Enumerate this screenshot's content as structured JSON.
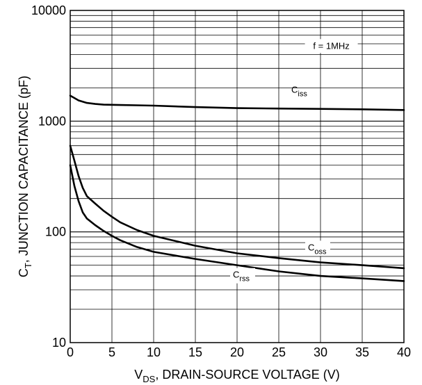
{
  "chart_data": {
    "type": "line",
    "xlabel": {
      "main": "V",
      "sub": "DS",
      "rest": ", DRAIN-SOURCE VOLTAGE (V)"
    },
    "ylabel": {
      "main": "C",
      "sub": "T",
      "rest": ", JUNCTION CAPACITANCE (pF)"
    },
    "xlim": [
      0,
      40
    ],
    "ylim": [
      10,
      10000
    ],
    "yscale": "log",
    "grid": true,
    "x_ticks": [
      "0",
      "5",
      "10",
      "15",
      "20",
      "25",
      "30",
      "35",
      "40"
    ],
    "y_ticks": [
      "10",
      "100",
      "1000",
      "10000"
    ],
    "annotation": "f = 1MHz",
    "series": [
      {
        "name": {
          "main": "C",
          "sub": "iss"
        },
        "x": [
          0,
          0.5,
          1,
          2,
          3,
          4,
          6,
          8,
          10,
          15,
          20,
          25,
          30,
          35,
          40
        ],
        "y": [
          1700,
          1620,
          1540,
          1460,
          1430,
          1410,
          1400,
          1390,
          1380,
          1340,
          1310,
          1300,
          1290,
          1280,
          1260
        ]
      },
      {
        "name": {
          "main": "C",
          "sub": "oss"
        },
        "x": [
          0,
          0.5,
          1,
          1.5,
          2,
          3,
          4,
          5,
          6,
          8,
          10,
          15,
          20,
          25,
          30,
          35,
          40
        ],
        "y": [
          600,
          440,
          320,
          250,
          210,
          180,
          155,
          137,
          122,
          104,
          92,
          75,
          64,
          58,
          53,
          50,
          47
        ]
      },
      {
        "name": {
          "main": "C",
          "sub": "rss"
        },
        "x": [
          0,
          0.5,
          1,
          1.5,
          2,
          3,
          4,
          5,
          6,
          8,
          10,
          15,
          20,
          25,
          30,
          35,
          40
        ],
        "y": [
          400,
          260,
          190,
          150,
          132,
          115,
          102,
          92,
          84,
          73,
          66,
          57,
          50,
          44,
          40,
          38,
          36
        ]
      }
    ]
  }
}
